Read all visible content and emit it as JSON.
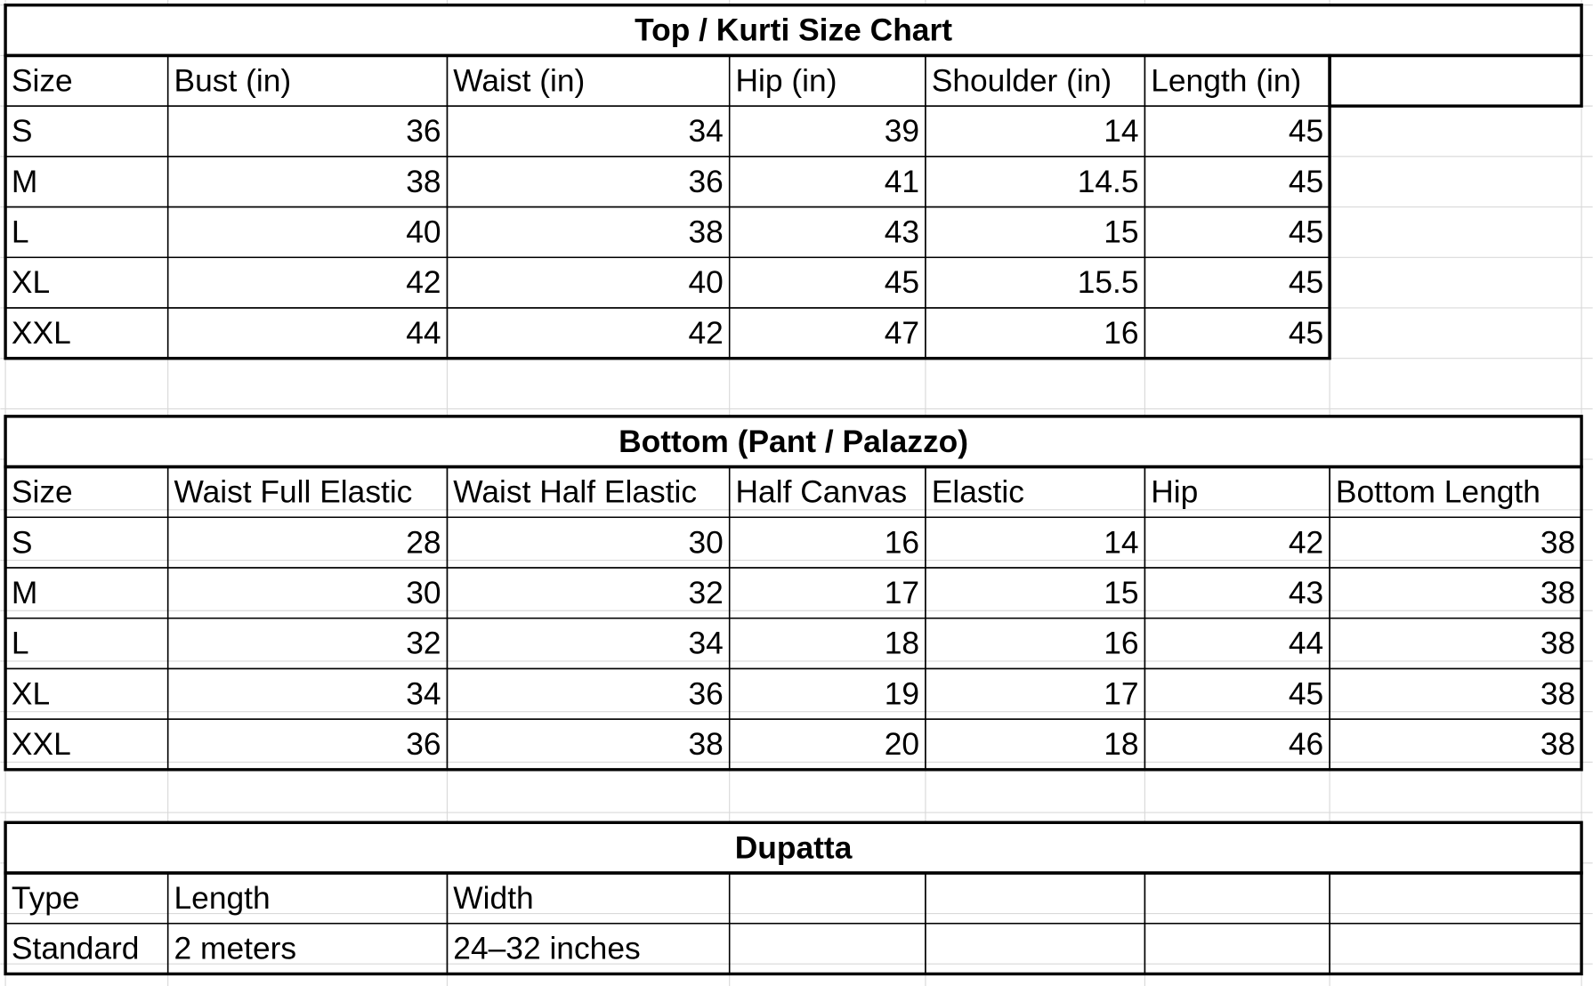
{
  "tables": [
    {
      "title": "Top / Kurti Size Chart",
      "header": [
        "Size",
        "Bust (in)",
        "Waist (in)",
        "Hip (in)",
        "Shoulder (in)",
        "Length (in)"
      ],
      "rows": [
        [
          "S",
          36,
          34,
          39,
          14,
          45
        ],
        [
          "M",
          38,
          36,
          41,
          14.5,
          45
        ],
        [
          "L",
          40,
          38,
          43,
          15,
          45
        ],
        [
          "XL",
          42,
          40,
          45,
          15.5,
          45
        ],
        [
          "XXL",
          44,
          42,
          47,
          16,
          45
        ]
      ]
    },
    {
      "title": "Bottom (Pant / Palazzo)",
      "header": [
        "Size",
        "Waist Full Elastic",
        "Waist Half Elastic",
        "Half Canvas",
        "Elastic",
        "Hip",
        "Bottom Length"
      ],
      "rows": [
        [
          "S",
          28,
          30,
          16,
          14,
          42,
          38
        ],
        [
          "M",
          30,
          32,
          17,
          15,
          43,
          38
        ],
        [
          "L",
          32,
          34,
          18,
          16,
          44,
          38
        ],
        [
          "XL",
          34,
          36,
          19,
          17,
          45,
          38
        ],
        [
          "XXL",
          36,
          38,
          20,
          18,
          46,
          38
        ]
      ]
    },
    {
      "title": "Dupatta",
      "header": [
        "Type",
        "Length",
        "Width"
      ],
      "rows": [
        [
          "Standard",
          "2 meters",
          "24–32 inches"
        ]
      ]
    }
  ]
}
